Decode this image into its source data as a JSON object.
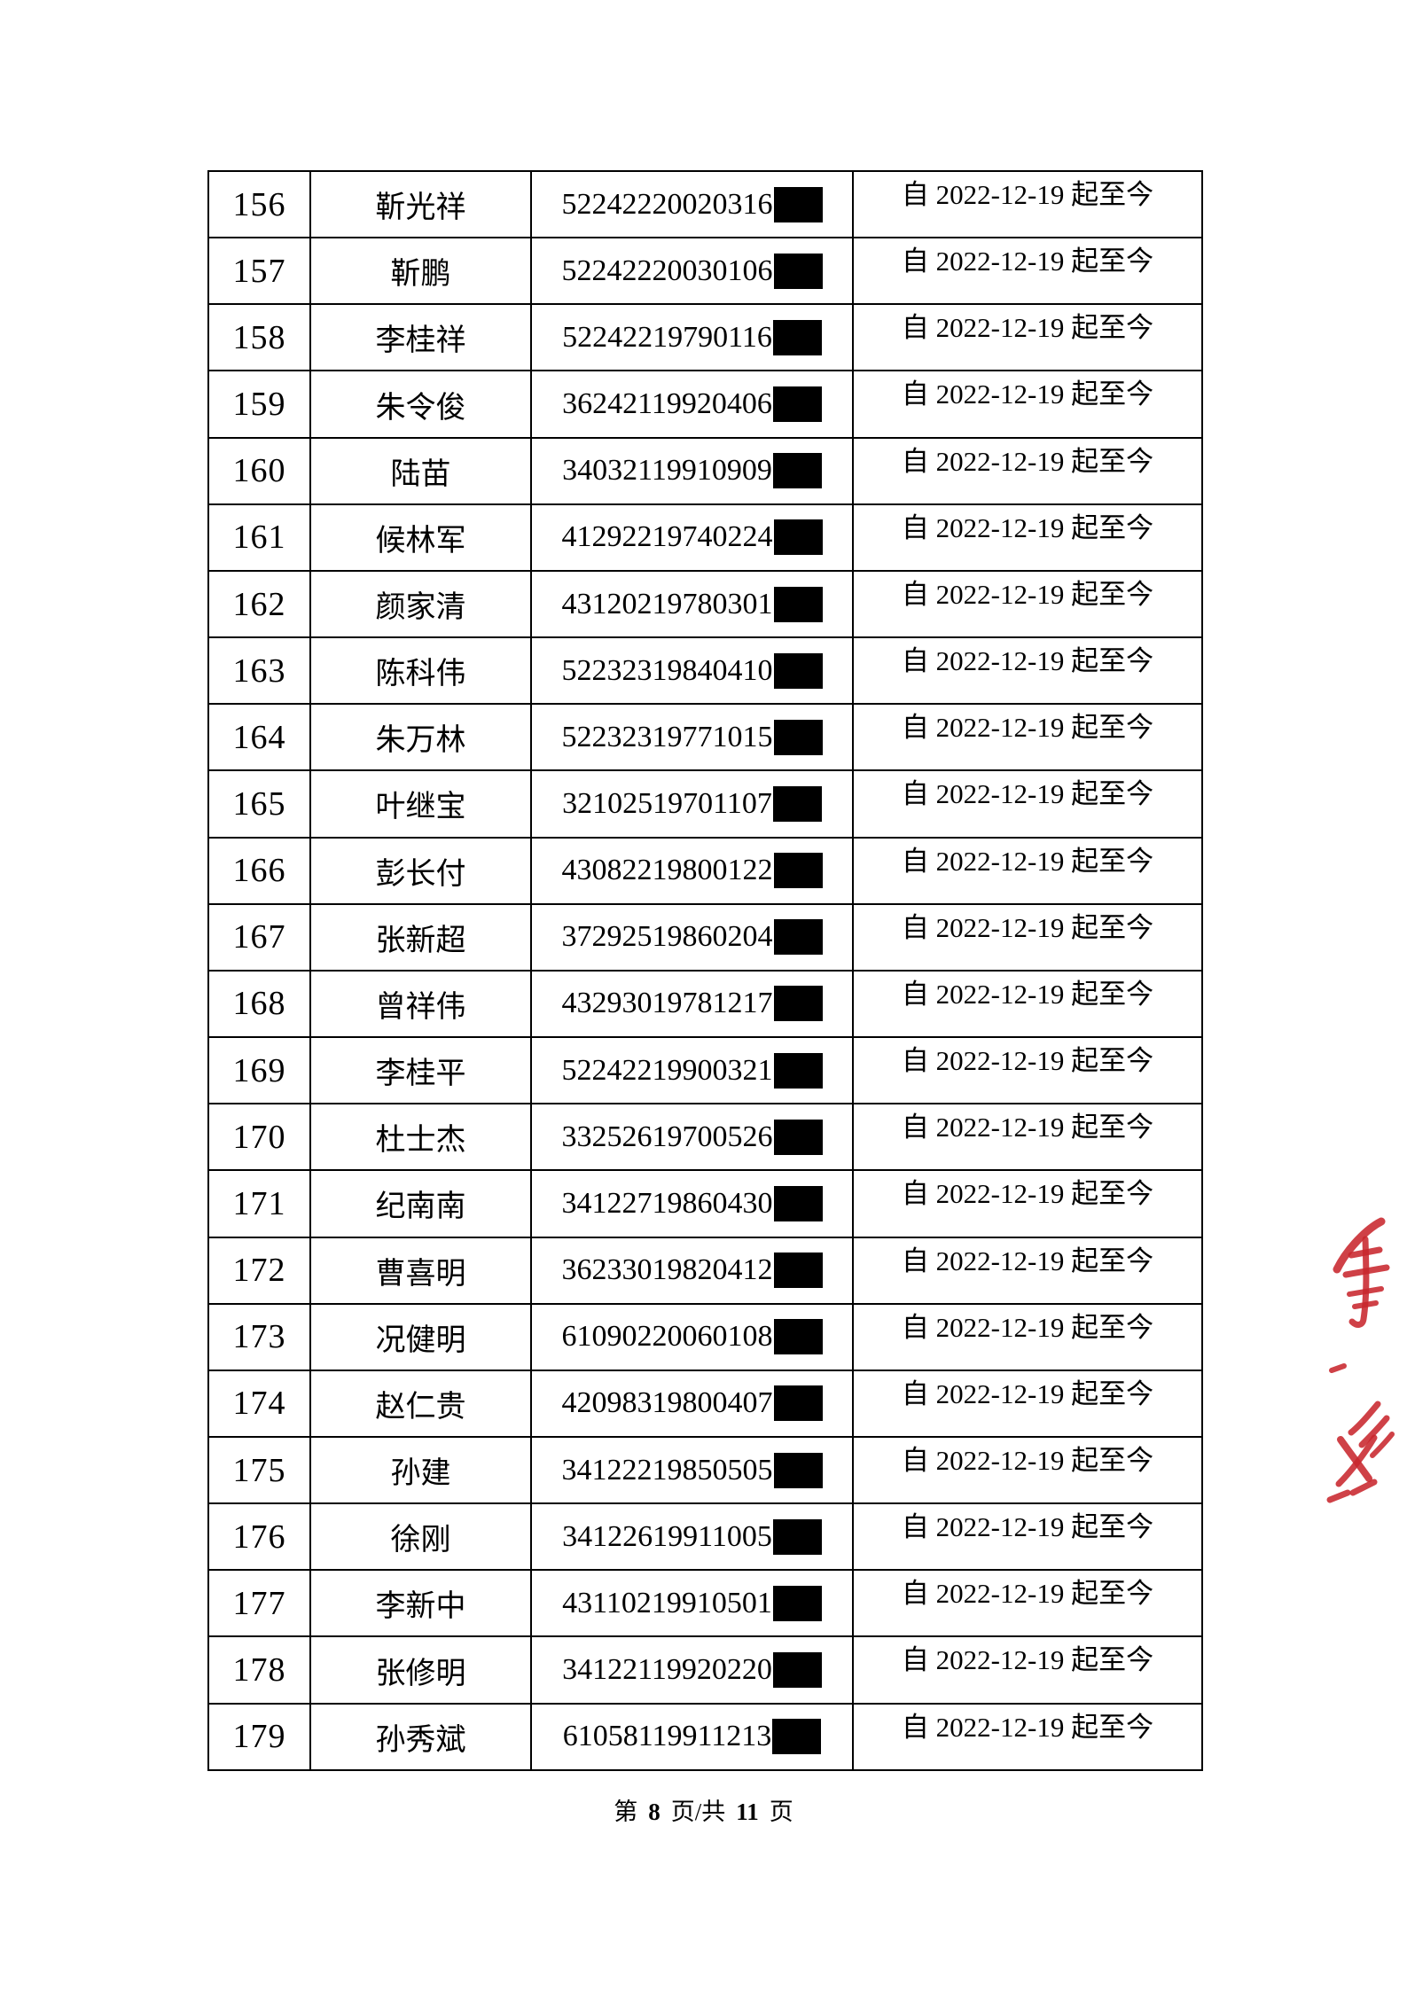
{
  "document": {
    "kind": "roster-continuation-page",
    "colors": {
      "text": "#000000",
      "table_border": "#000000",
      "redaction": "#000000",
      "stamp_red": "#c8272d"
    }
  },
  "table": {
    "date_label": "自 2022-12-19 起至今",
    "rows": [
      {
        "no": "156",
        "name": "靳光祥",
        "id": "52242220020316"
      },
      {
        "no": "157",
        "name": "靳鹏",
        "id": "52242220030106"
      },
      {
        "no": "158",
        "name": "李桂祥",
        "id": "52242219790116"
      },
      {
        "no": "159",
        "name": "朱令俊",
        "id": "36242119920406"
      },
      {
        "no": "160",
        "name": "陆苗",
        "id": "34032119910909"
      },
      {
        "no": "161",
        "name": "候林军",
        "id": "41292219740224"
      },
      {
        "no": "162",
        "name": "颜家清",
        "id": "43120219780301"
      },
      {
        "no": "163",
        "name": "陈科伟",
        "id": "52232319840410"
      },
      {
        "no": "164",
        "name": "朱万林",
        "id": "52232319771015"
      },
      {
        "no": "165",
        "name": "叶继宝",
        "id": "32102519701107"
      },
      {
        "no": "166",
        "name": "彭长付",
        "id": "43082219800122"
      },
      {
        "no": "167",
        "name": "张新超",
        "id": "37292519860204"
      },
      {
        "no": "168",
        "name": "曾祥伟",
        "id": "43293019781217"
      },
      {
        "no": "169",
        "name": "李桂平",
        "id": "52242219900321"
      },
      {
        "no": "170",
        "name": "杜士杰",
        "id": "33252619700526"
      },
      {
        "no": "171",
        "name": "纪南南",
        "id": "34122719860430"
      },
      {
        "no": "172",
        "name": "曹喜明",
        "id": "36233019820412"
      },
      {
        "no": "173",
        "name": "况健明",
        "id": "61090220060108"
      },
      {
        "no": "174",
        "name": "赵仁贵",
        "id": "42098319800407"
      },
      {
        "no": "175",
        "name": "孙建",
        "id": "34122219850505"
      },
      {
        "no": "176",
        "name": "徐刚",
        "id": "34122619911005"
      },
      {
        "no": "177",
        "name": "李新中",
        "id": "43110219910501"
      },
      {
        "no": "178",
        "name": "张修明",
        "id": "34122119920220"
      },
      {
        "no": "179",
        "name": "孙秀斌",
        "id": "61058119911213"
      }
    ]
  },
  "footer": {
    "label_prefix": "第",
    "current_page": "8",
    "label_mid": "页/共",
    "total_pages": "11",
    "label_suffix": "页"
  },
  "stamp": {
    "name": "red-seal-stamp",
    "description_color": "#c8272d"
  }
}
